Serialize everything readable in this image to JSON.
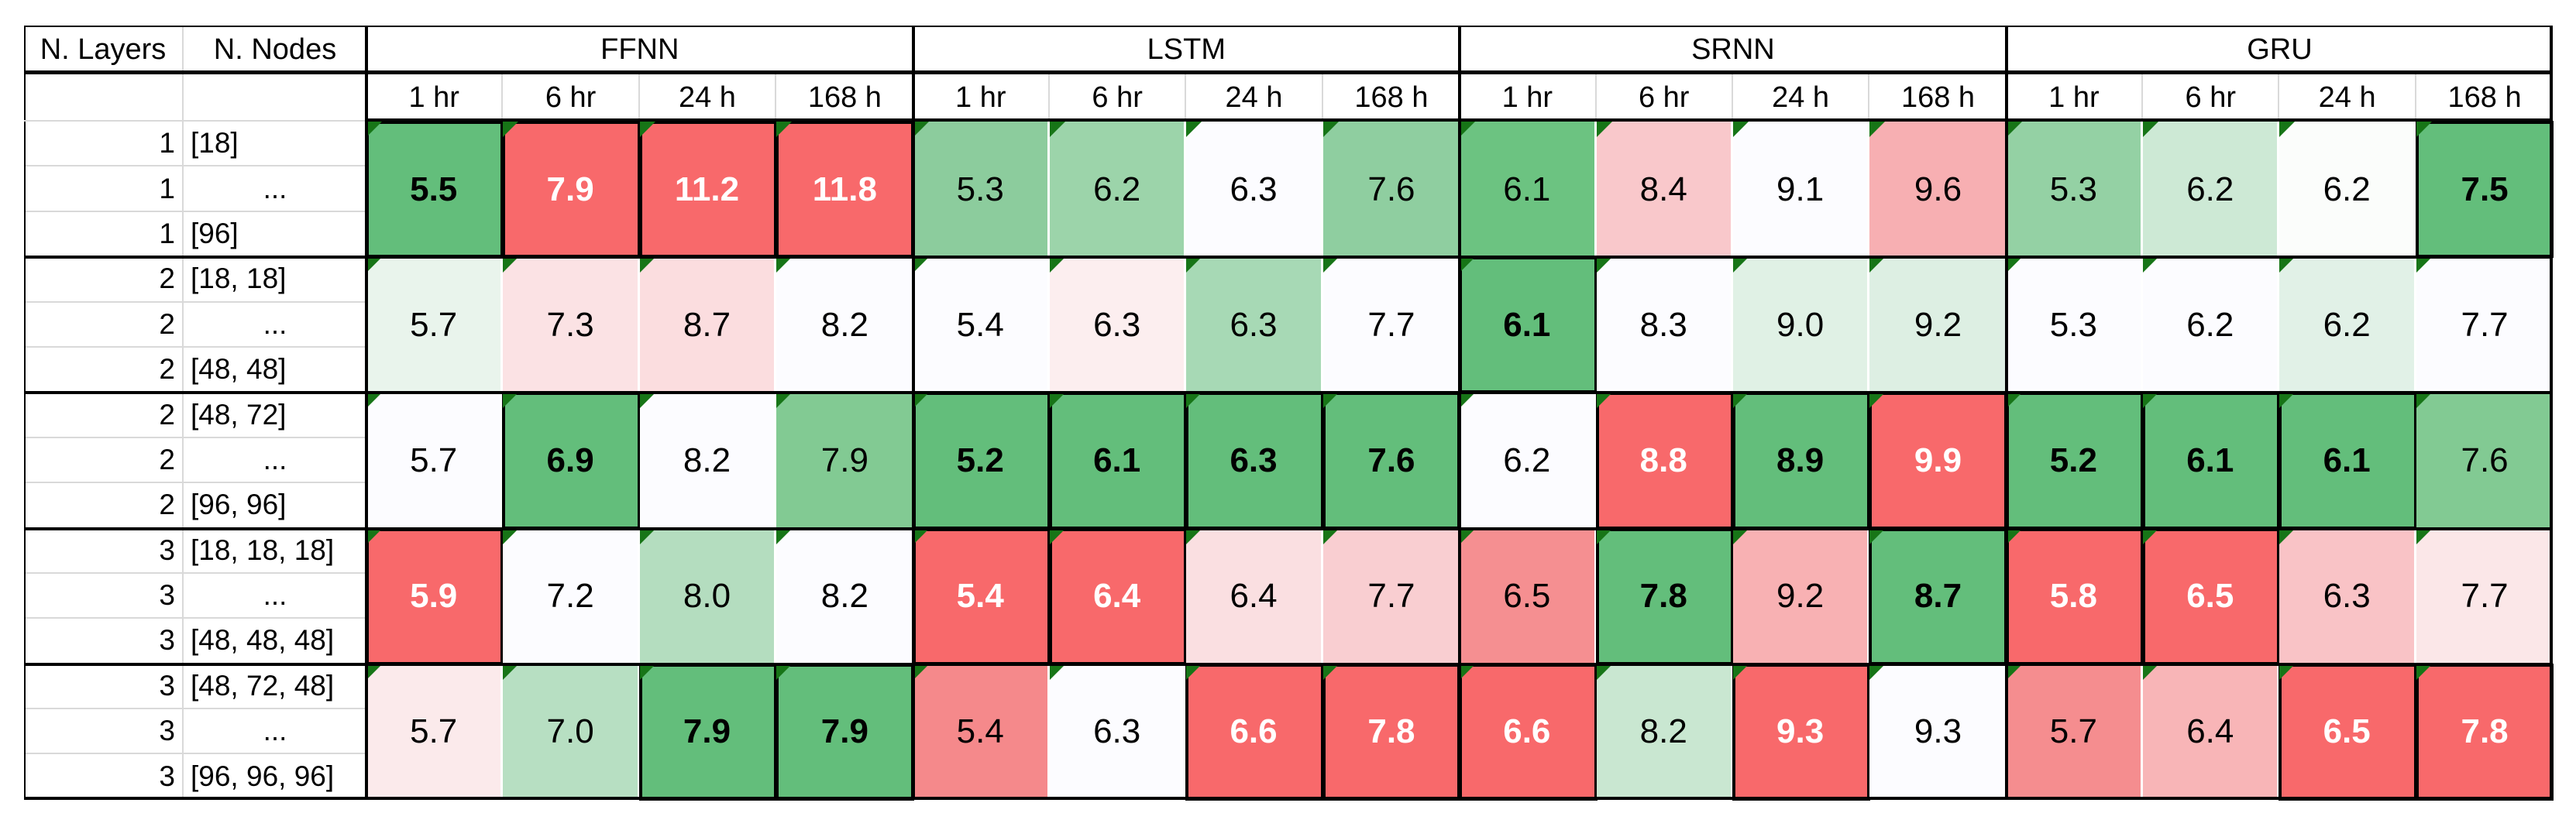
{
  "colors": {
    "column_min_bg": "#63BE7B",
    "column_max_bg": "#F8696B",
    "neutral_bg": "#FCFCFF",
    "max_text": "#FFFFFF",
    "min_text": "#000000",
    "flag_triangle": "#177517",
    "gridline": "#D9D9D9",
    "border": "#000000"
  },
  "table": {
    "corner_headers": [
      "N. Layers",
      "N. Nodes"
    ],
    "model_groups": [
      "FFNN",
      "LSTM",
      "SRNN",
      "GRU"
    ],
    "horizon_headers": [
      "1 hr",
      "6 hr",
      "24 h",
      "168 h"
    ],
    "groups": [
      {
        "rows": [
          {
            "layers": "1",
            "nodes": "[18]"
          },
          {
            "layers": "1",
            "nodes": "..."
          },
          {
            "layers": "1",
            "nodes": "[96]"
          }
        ],
        "cells": [
          {
            "v": "5.5",
            "bg": "#63BE7B",
            "fg": "#000000",
            "bold": true,
            "box": true
          },
          {
            "v": "7.9",
            "bg": "#F8696B",
            "fg": "#FFFFFF",
            "bold": true,
            "box": true
          },
          {
            "v": "11.2",
            "bg": "#F8696B",
            "fg": "#FFFFFF",
            "bold": true,
            "box": true
          },
          {
            "v": "11.8",
            "bg": "#F8696B",
            "fg": "#FFFFFF",
            "bold": true,
            "box": true
          },
          {
            "v": "5.3",
            "bg": "#8CCC9D"
          },
          {
            "v": "6.2",
            "bg": "#9CD4AA"
          },
          {
            "v": "6.3",
            "bg": "#FCFCFF"
          },
          {
            "v": "7.6",
            "bg": "#8FCEA0"
          },
          {
            "v": "6.1",
            "bg": "#6CC381"
          },
          {
            "v": "8.4",
            "bg": "#F9C8CB"
          },
          {
            "v": "9.1",
            "bg": "#FCFCFF"
          },
          {
            "v": "9.6",
            "bg": "#F7AFB2"
          },
          {
            "v": "5.3",
            "bg": "#94D1A4"
          },
          {
            "v": "6.2",
            "bg": "#CDE9D5"
          },
          {
            "v": "6.2",
            "bg": "#FBFDFB"
          },
          {
            "v": "7.5",
            "bg": "#63BE7B",
            "fg": "#000000",
            "bold": true,
            "box": true
          }
        ]
      },
      {
        "rows": [
          {
            "layers": "2",
            "nodes": "[18, 18]"
          },
          {
            "layers": "2",
            "nodes": "..."
          },
          {
            "layers": "2",
            "nodes": "[48, 48]"
          }
        ],
        "cells": [
          {
            "v": "5.7",
            "bg": "#E9F4EC"
          },
          {
            "v": "7.3",
            "bg": "#FBE2E4"
          },
          {
            "v": "8.7",
            "bg": "#FBDDDF"
          },
          {
            "v": "8.2",
            "bg": "#FCFCFF"
          },
          {
            "v": "5.4",
            "bg": "#FCFCFF"
          },
          {
            "v": "6.3",
            "bg": "#FCEEEF"
          },
          {
            "v": "6.3",
            "bg": "#A7D9B5"
          },
          {
            "v": "7.7",
            "bg": "#FCFCFF"
          },
          {
            "v": "6.1",
            "bg": "#63BE7B",
            "fg": "#000000",
            "bold": true,
            "box": true
          },
          {
            "v": "8.3",
            "bg": "#FCFCFF"
          },
          {
            "v": "9.0",
            "bg": "#E0F1E5"
          },
          {
            "v": "9.2",
            "bg": "#DDEFE3"
          },
          {
            "v": "5.3",
            "bg": "#FCFCFF"
          },
          {
            "v": "6.2",
            "bg": "#FCFCFF"
          },
          {
            "v": "6.2",
            "bg": "#E1F1E7"
          },
          {
            "v": "7.7",
            "bg": "#FCFCFF"
          }
        ]
      },
      {
        "rows": [
          {
            "layers": "2",
            "nodes": "[48, 72]"
          },
          {
            "layers": "2",
            "nodes": "..."
          },
          {
            "layers": "2",
            "nodes": "[96, 96]"
          }
        ],
        "cells": [
          {
            "v": "5.7",
            "bg": "#FCFCFF"
          },
          {
            "v": "6.9",
            "bg": "#63BE7B",
            "fg": "#000000",
            "bold": true,
            "box": true
          },
          {
            "v": "8.2",
            "bg": "#FCFCFF"
          },
          {
            "v": "7.9",
            "bg": "#82CA93"
          },
          {
            "v": "5.2",
            "bg": "#63BE7B",
            "fg": "#000000",
            "bold": true,
            "box": true
          },
          {
            "v": "6.1",
            "bg": "#63BE7B",
            "fg": "#000000",
            "bold": true,
            "box": true
          },
          {
            "v": "6.3",
            "bg": "#63BE7B",
            "fg": "#000000",
            "bold": true,
            "box": true
          },
          {
            "v": "7.6",
            "bg": "#63BE7B",
            "fg": "#000000",
            "bold": true,
            "box": true
          },
          {
            "v": "6.2",
            "bg": "#FCFCFF"
          },
          {
            "v": "8.8",
            "bg": "#F8696B",
            "fg": "#FFFFFF",
            "bold": true,
            "box": true
          },
          {
            "v": "8.9",
            "bg": "#63BE7B",
            "fg": "#000000",
            "bold": true,
            "box": true
          },
          {
            "v": "9.9",
            "bg": "#F8696B",
            "fg": "#FFFFFF",
            "bold": true,
            "box": true
          },
          {
            "v": "5.2",
            "bg": "#63BE7B",
            "fg": "#000000",
            "bold": true,
            "box": true
          },
          {
            "v": "6.1",
            "bg": "#63BE7B",
            "fg": "#000000",
            "bold": true,
            "box": true
          },
          {
            "v": "6.1",
            "bg": "#63BE7B",
            "fg": "#000000",
            "bold": true,
            "box": true
          },
          {
            "v": "7.6",
            "bg": "#82CA93"
          }
        ]
      },
      {
        "rows": [
          {
            "layers": "3",
            "nodes": "[18, 18, 18]"
          },
          {
            "layers": "3",
            "nodes": "..."
          },
          {
            "layers": "3",
            "nodes": "[48, 48, 48]"
          }
        ],
        "cells": [
          {
            "v": "5.9",
            "bg": "#F8696B",
            "fg": "#FFFFFF",
            "bold": true,
            "box": true
          },
          {
            "v": "7.2",
            "bg": "#FCFCFF"
          },
          {
            "v": "8.0",
            "bg": "#B4DDBF"
          },
          {
            "v": "8.2",
            "bg": "#FCFCFF"
          },
          {
            "v": "5.4",
            "bg": "#F8696B",
            "fg": "#FFFFFF",
            "bold": true,
            "box": true
          },
          {
            "v": "6.4",
            "bg": "#F8696B",
            "fg": "#FFFFFF",
            "bold": true,
            "box": true
          },
          {
            "v": "6.4",
            "bg": "#FADFE1"
          },
          {
            "v": "7.7",
            "bg": "#F9CED1"
          },
          {
            "v": "6.5",
            "bg": "#F58F91"
          },
          {
            "v": "7.8",
            "bg": "#63BE7B",
            "fg": "#000000",
            "bold": true,
            "box": true
          },
          {
            "v": "9.2",
            "bg": "#F8B1B3"
          },
          {
            "v": "8.7",
            "bg": "#63BE7B",
            "fg": "#000000",
            "bold": true,
            "box": true
          },
          {
            "v": "5.8",
            "bg": "#F8696B",
            "fg": "#FFFFFF",
            "bold": true,
            "box": true
          },
          {
            "v": "6.5",
            "bg": "#F8696B",
            "fg": "#FFFFFF",
            "bold": true,
            "box": true
          },
          {
            "v": "6.3",
            "bg": "#F9C3C6"
          },
          {
            "v": "7.7",
            "bg": "#FBE7E8"
          }
        ]
      },
      {
        "rows": [
          {
            "layers": "3",
            "nodes": "[48, 72, 48]"
          },
          {
            "layers": "3",
            "nodes": "..."
          },
          {
            "layers": "3",
            "nodes": "[96, 96, 96]"
          }
        ],
        "cells": [
          {
            "v": "5.7",
            "bg": "#FBEAEB"
          },
          {
            "v": "7.0",
            "bg": "#B7DFC2"
          },
          {
            "v": "7.9",
            "bg": "#63BE7B",
            "fg": "#000000",
            "bold": true,
            "box": true
          },
          {
            "v": "7.9",
            "bg": "#63BE7B",
            "fg": "#000000",
            "bold": true,
            "box": true
          },
          {
            "v": "5.4",
            "bg": "#F5898B"
          },
          {
            "v": "6.3",
            "bg": "#FCFCFF"
          },
          {
            "v": "6.6",
            "bg": "#F8696B",
            "fg": "#FFFFFF",
            "bold": true,
            "box": true
          },
          {
            "v": "7.8",
            "bg": "#F8696B",
            "fg": "#FFFFFF",
            "bold": true,
            "box": true
          },
          {
            "v": "6.6",
            "bg": "#F8696B",
            "fg": "#FFFFFF",
            "bold": true,
            "box": true
          },
          {
            "v": "8.2",
            "bg": "#C9E7D1"
          },
          {
            "v": "9.3",
            "bg": "#F8696B",
            "fg": "#FFFFFF",
            "bold": true,
            "box": true
          },
          {
            "v": "9.3",
            "bg": "#FCFCFF"
          },
          {
            "v": "5.7",
            "bg": "#F58D8F"
          },
          {
            "v": "6.4",
            "bg": "#F8B5B7"
          },
          {
            "v": "6.5",
            "bg": "#F8696B",
            "fg": "#FFFFFF",
            "bold": true,
            "box": true
          },
          {
            "v": "7.8",
            "bg": "#F8696B",
            "fg": "#FFFFFF",
            "bold": true,
            "box": true
          }
        ]
      }
    ]
  },
  "chart_data": {
    "type": "heatmap",
    "row_label_headers": [
      "N. Layers",
      "N. Nodes"
    ],
    "column_groups": [
      "FFNN",
      "LSTM",
      "SRNN",
      "GRU"
    ],
    "columns_per_group": [
      "1 hr",
      "6 hr",
      "24 h",
      "168 h"
    ],
    "color_scale": {
      "low": "#63BE7B",
      "mid": "#FCFCFF",
      "high": "#F8696B"
    },
    "formatting_note": "bold black on strong green with black box = column minimum; bold white on strong red with black box = column maximum; each cell has a dark-green top-left flag triangle",
    "rows": [
      {
        "n_layers": 1,
        "nodes": [
          "[18]",
          "...",
          "[96]"
        ],
        "FFNN": [
          5.5,
          7.9,
          11.2,
          11.8
        ],
        "LSTM": [
          5.3,
          6.2,
          6.3,
          7.6
        ],
        "SRNN": [
          6.1,
          8.4,
          9.1,
          9.6
        ],
        "GRU": [
          5.3,
          6.2,
          6.2,
          7.5
        ]
      },
      {
        "n_layers": 2,
        "nodes": [
          "[18, 18]",
          "...",
          "[48, 48]"
        ],
        "FFNN": [
          5.7,
          7.3,
          8.7,
          8.2
        ],
        "LSTM": [
          5.4,
          6.3,
          6.3,
          7.7
        ],
        "SRNN": [
          6.1,
          8.3,
          9.0,
          9.2
        ],
        "GRU": [
          5.3,
          6.2,
          6.2,
          7.7
        ]
      },
      {
        "n_layers": 2,
        "nodes": [
          "[48, 72]",
          "...",
          "[96, 96]"
        ],
        "FFNN": [
          5.7,
          6.9,
          8.2,
          7.9
        ],
        "LSTM": [
          5.2,
          6.1,
          6.3,
          7.6
        ],
        "SRNN": [
          6.2,
          8.8,
          8.9,
          9.9
        ],
        "GRU": [
          5.2,
          6.1,
          6.1,
          7.6
        ]
      },
      {
        "n_layers": 3,
        "nodes": [
          "[18, 18, 18]",
          "...",
          "[48, 48, 48]"
        ],
        "FFNN": [
          5.9,
          7.2,
          8.0,
          8.2
        ],
        "LSTM": [
          5.4,
          6.4,
          6.4,
          7.7
        ],
        "SRNN": [
          6.5,
          7.8,
          9.2,
          8.7
        ],
        "GRU": [
          5.8,
          6.5,
          6.3,
          7.7
        ]
      },
      {
        "n_layers": 3,
        "nodes": [
          "[48, 72, 48]",
          "...",
          "[96, 96, 96]"
        ],
        "FFNN": [
          5.7,
          7.0,
          7.9,
          7.9
        ],
        "LSTM": [
          5.4,
          6.3,
          6.6,
          7.8
        ],
        "SRNN": [
          6.6,
          8.2,
          9.3,
          9.3
        ],
        "GRU": [
          5.7,
          6.4,
          6.5,
          7.8
        ]
      }
    ]
  }
}
